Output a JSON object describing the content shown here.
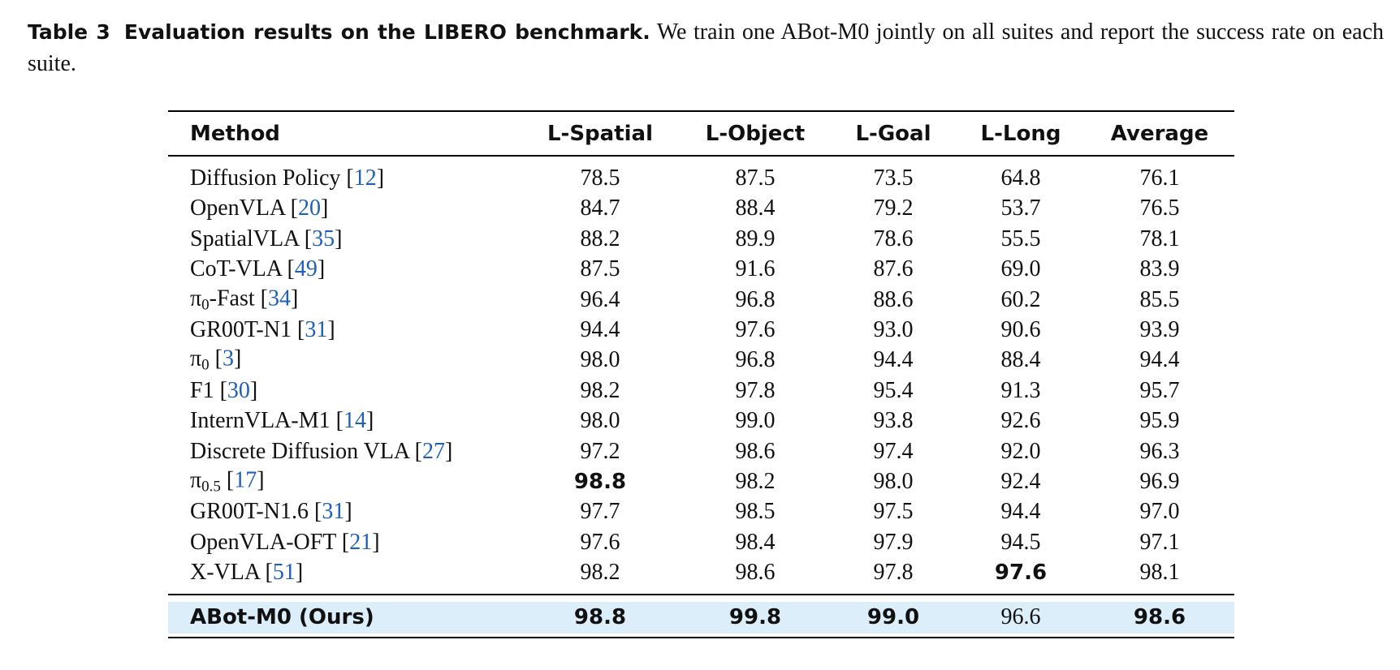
{
  "caption": {
    "label": "Table 3",
    "title": "Evaluation results on the LIBERO benchmark.",
    "text": "We train one ABot-M0 jointly on all suites and report the success rate on each suite."
  },
  "table": {
    "header": [
      "Method",
      "L-Spatial",
      "L-Object",
      "L-Goal",
      "L-Long",
      "Average"
    ],
    "rows": [
      {
        "name": "Diffusion Policy",
        "ref": "12",
        "values": [
          "78.5",
          "87.5",
          "73.5",
          "64.8",
          "76.1"
        ]
      },
      {
        "name": "OpenVLA",
        "ref": "20",
        "values": [
          "84.7",
          "88.4",
          "79.2",
          "53.7",
          "76.5"
        ]
      },
      {
        "name": "SpatialVLA",
        "ref": "35",
        "values": [
          "88.2",
          "89.9",
          "78.6",
          "55.5",
          "78.1"
        ]
      },
      {
        "name": "CoT-VLA",
        "ref": "49",
        "values": [
          "87.5",
          "91.6",
          "87.6",
          "69.0",
          "83.9"
        ]
      },
      {
        "name": "π",
        "sub": "0",
        "suffix": "-Fast",
        "ref": "34",
        "values": [
          "96.4",
          "96.8",
          "88.6",
          "60.2",
          "85.5"
        ]
      },
      {
        "name": "GR00T-N1",
        "ref": "31",
        "values": [
          "94.4",
          "97.6",
          "93.0",
          "90.6",
          "93.9"
        ]
      },
      {
        "name": "π",
        "sub": "0",
        "ref": "3",
        "values": [
          "98.0",
          "96.8",
          "94.4",
          "88.4",
          "94.4"
        ]
      },
      {
        "name": "F1",
        "ref": "30",
        "values": [
          "98.2",
          "97.8",
          "95.4",
          "91.3",
          "95.7"
        ]
      },
      {
        "name": "InternVLA-M1",
        "ref": "14",
        "values": [
          "98.0",
          "99.0",
          "93.8",
          "92.6",
          "95.9"
        ]
      },
      {
        "name": "Discrete Diffusion VLA",
        "ref": "27",
        "values": [
          "97.2",
          "98.6",
          "97.4",
          "92.0",
          "96.3"
        ]
      },
      {
        "name": "π",
        "sub": "0.5",
        "ref": "17",
        "values": [
          "98.8",
          "98.2",
          "98.0",
          "92.4",
          "96.9"
        ],
        "bold": [
          0
        ]
      },
      {
        "name": "GR00T-N1.6",
        "ref": "31",
        "values": [
          "97.7",
          "98.5",
          "97.5",
          "94.4",
          "97.0"
        ]
      },
      {
        "name": "OpenVLA-OFT",
        "ref": "21",
        "values": [
          "97.6",
          "98.4",
          "97.9",
          "94.5",
          "97.1"
        ]
      },
      {
        "name": "X-VLA",
        "ref": "51",
        "values": [
          "98.2",
          "98.6",
          "97.8",
          "97.6",
          "98.1"
        ],
        "bold": [
          3
        ]
      }
    ],
    "ours": {
      "name": "ABot-M0 (Ours)",
      "values": [
        "98.8",
        "99.8",
        "99.0",
        "96.6",
        "98.6"
      ],
      "bold": [
        0,
        1,
        2,
        4
      ]
    }
  }
}
